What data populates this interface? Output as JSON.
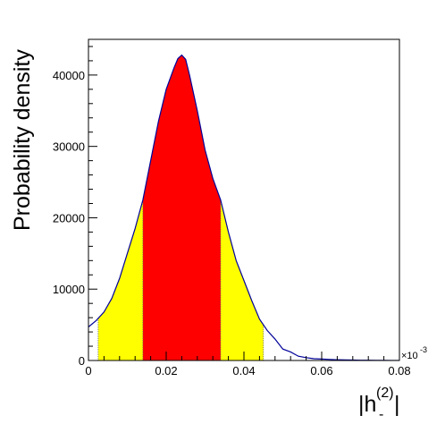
{
  "chart_data": {
    "type": "area",
    "ylabel": "Probability density",
    "xlabel": {
      "prefix": "|h",
      "sup": "(2)",
      "sub": "-",
      "suffix": "|"
    },
    "x_exponent_label": "×10",
    "x_exponent_power": "-3",
    "xlim": [
      0,
      0.08
    ],
    "ylim": [
      0,
      45000
    ],
    "x_ticks": [
      0,
      0.02,
      0.04,
      0.06,
      0.08
    ],
    "x_tick_labels": [
      "0",
      "0.02",
      "0.04",
      "0.06",
      "0.08"
    ],
    "y_ticks": [
      0,
      10000,
      20000,
      30000,
      40000
    ],
    "y_tick_labels": [
      "0",
      "10000",
      "20000",
      "30000",
      "40000"
    ],
    "bands": [
      {
        "name": "outer",
        "from": 0.0025,
        "to": 0.045,
        "color": "#ffff00"
      },
      {
        "name": "inner",
        "from": 0.014,
        "to": 0.034,
        "color": "#ff0000"
      }
    ],
    "line_color": "#000099",
    "curve": {
      "x": [
        0,
        0.002,
        0.004,
        0.006,
        0.008,
        0.01,
        0.012,
        0.014,
        0.016,
        0.018,
        0.02,
        0.022,
        0.023,
        0.024,
        0.025,
        0.026,
        0.028,
        0.03,
        0.032,
        0.034,
        0.036,
        0.038,
        0.04,
        0.042,
        0.044,
        0.046,
        0.048,
        0.05,
        0.052,
        0.054,
        0.056,
        0.058,
        0.06,
        0.062,
        0.064,
        0.066,
        0.068,
        0.07,
        0.072,
        0.074,
        0.076,
        0.078,
        0.08
      ],
      "y": [
        4700,
        5600,
        6800,
        8700,
        11500,
        15000,
        18500,
        22500,
        28000,
        33500,
        38000,
        41000,
        42300,
        42800,
        42200,
        40000,
        35000,
        29500,
        25500,
        22500,
        18000,
        14000,
        11200,
        8400,
        5800,
        4200,
        3000,
        1600,
        1200,
        600,
        400,
        250,
        200,
        150,
        100,
        80,
        60,
        40,
        30,
        20,
        15,
        10,
        5
      ]
    }
  }
}
